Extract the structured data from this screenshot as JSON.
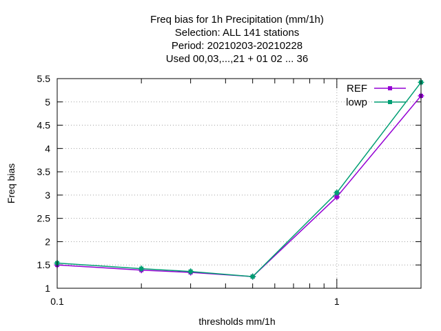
{
  "chart_data": {
    "type": "line",
    "title_lines": [
      "Freq bias  for 1h Precipitation (mm/1h)",
      "Selection: ALL    141 stations",
      "Period: 20210203-20210228",
      "Used  00,03,...,21  + 01 02 ... 36"
    ],
    "xlabel": "thresholds mm/1h",
    "ylabel": "Freq bias",
    "x_scale": "log",
    "xlim": [
      0.1,
      2
    ],
    "ylim": [
      1,
      5.5
    ],
    "x_ticks": [
      0.1,
      1
    ],
    "x_tick_labels": [
      "0.1",
      "1"
    ],
    "x_minor_ticks": [
      0.2,
      0.3,
      0.4,
      0.5,
      0.6,
      0.7,
      0.8,
      0.9,
      2
    ],
    "y_ticks": [
      1,
      1.5,
      2,
      2.5,
      3,
      3.5,
      4,
      4.5,
      5,
      5.5
    ],
    "y_tick_labels": [
      "1",
      "1.5",
      "2",
      "2.5",
      "3",
      "3.5",
      "4",
      "4.5",
      "5",
      "5.5"
    ],
    "grid": true,
    "legend_position": "top-right",
    "series": [
      {
        "name": "REF",
        "color": "#9400d3",
        "marker": "plus-square",
        "x": [
          0.1,
          0.2,
          0.3,
          0.5,
          1,
          2
        ],
        "y": [
          1.5,
          1.39,
          1.34,
          1.25,
          2.96,
          5.13
        ]
      },
      {
        "name": "lowp",
        "color": "#009e73",
        "marker": "plus-square",
        "x": [
          0.1,
          0.2,
          0.3,
          0.5,
          1,
          2
        ],
        "y": [
          1.54,
          1.42,
          1.36,
          1.25,
          3.05,
          5.42
        ]
      }
    ]
  }
}
